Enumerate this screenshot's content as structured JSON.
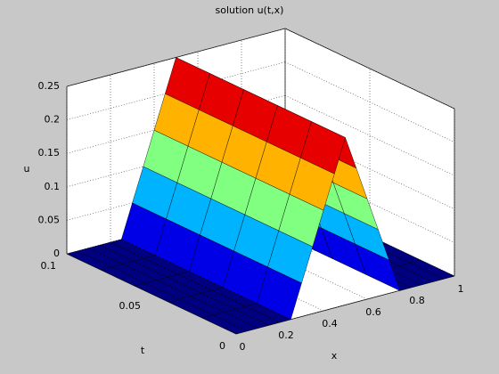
{
  "chart_data": {
    "type": "surface",
    "title": "solution u(t,x)",
    "xlabel": "x",
    "tlabel": "t",
    "zlabel": "u",
    "x": [
      0,
      0.05,
      0.1,
      0.15,
      0.2,
      0.25,
      0.3,
      0.35,
      0.4,
      0.45,
      0.5,
      0.55,
      0.6,
      0.65,
      0.7,
      0.75,
      0.8,
      0.85,
      0.9,
      0.95,
      1
    ],
    "t": [
      0,
      0.02,
      0.04,
      0.06,
      0.08,
      0.1
    ],
    "z": [
      [
        0,
        0,
        0,
        0,
        0,
        0,
        0.05,
        0.1,
        0.15,
        0.2,
        0.25,
        0.2,
        0.15,
        0.1,
        0.05,
        0,
        0,
        0,
        0,
        0,
        0
      ],
      [
        0,
        0,
        0,
        0,
        0,
        0,
        0.05,
        0.1,
        0.15,
        0.2,
        0.25,
        0.2,
        0.15,
        0.1,
        0.05,
        0,
        0,
        0,
        0,
        0,
        0
      ],
      [
        0,
        0,
        0,
        0,
        0,
        0,
        0.05,
        0.1,
        0.15,
        0.2,
        0.25,
        0.2,
        0.15,
        0.1,
        0.05,
        0,
        0,
        0,
        0,
        0,
        0
      ],
      [
        0,
        0,
        0,
        0,
        0,
        0,
        0.05,
        0.1,
        0.15,
        0.2,
        0.25,
        0.2,
        0.15,
        0.1,
        0.05,
        0,
        0,
        0,
        0,
        0,
        0
      ],
      [
        0,
        0,
        0,
        0,
        0,
        0,
        0.05,
        0.1,
        0.15,
        0.2,
        0.25,
        0.2,
        0.15,
        0.1,
        0.05,
        0,
        0,
        0,
        0,
        0,
        0
      ],
      [
        0,
        0,
        0,
        0,
        0,
        0,
        0.05,
        0.1,
        0.15,
        0.2,
        0.25,
        0.2,
        0.15,
        0.1,
        0.05,
        0,
        0,
        0,
        0,
        0,
        0
      ]
    ],
    "xlim": [
      0,
      1
    ],
    "xticks": [
      0,
      0.2,
      0.4,
      0.6,
      0.8,
      1
    ],
    "tlim": [
      0,
      0.1
    ],
    "tticks": [
      0,
      0.05,
      0.1
    ],
    "zlim": [
      0,
      0.25
    ],
    "zticks": [
      0,
      0.05,
      0.1,
      0.15,
      0.2,
      0.25
    ],
    "grid": true,
    "colormap": "jet"
  }
}
